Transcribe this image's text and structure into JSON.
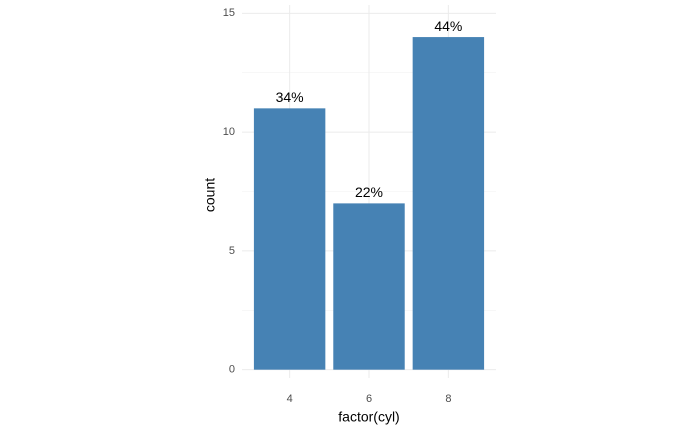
{
  "chart_data": {
    "type": "bar",
    "categories": [
      "4",
      "6",
      "8"
    ],
    "values": [
      11,
      7,
      14
    ],
    "value_labels": [
      "34%",
      "22%",
      "44%"
    ],
    "color": "steelblue",
    "x_label": "factor(cyl)",
    "y_label": "count",
    "ylim": [
      -0.35,
      15.35
    ],
    "yticks": [
      0,
      5,
      10,
      15
    ],
    "minor_yticks": [
      2.5,
      7.5,
      12.5
    ],
    "grid": true
  }
}
